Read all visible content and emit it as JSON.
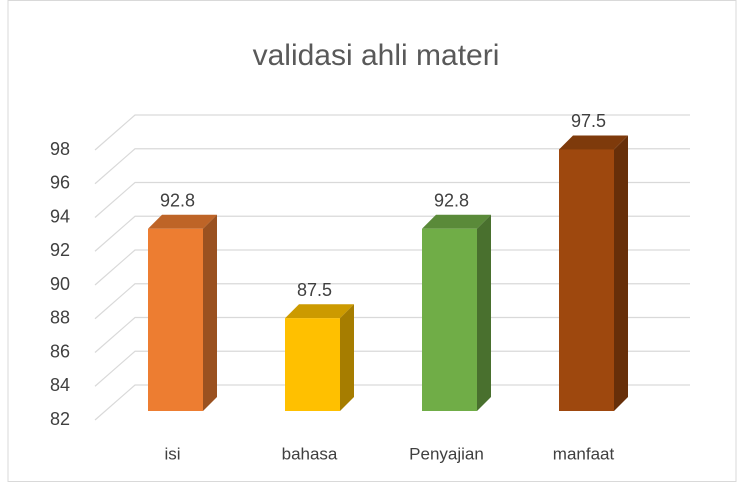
{
  "chart_data": {
    "type": "bar3d",
    "title": "validasi ahli materi",
    "categories": [
      "isi",
      "bahasa",
      "Penyajian",
      "manfaat"
    ],
    "values": [
      92.8,
      87.5,
      92.8,
      97.5
    ],
    "colors": [
      "#ED7D31",
      "#FFC000",
      "#70AD47",
      "#9E480E"
    ],
    "ylim": [
      82,
      98
    ],
    "yticks": [
      82,
      84,
      86,
      88,
      90,
      92,
      94,
      96,
      98
    ],
    "grid": true
  }
}
